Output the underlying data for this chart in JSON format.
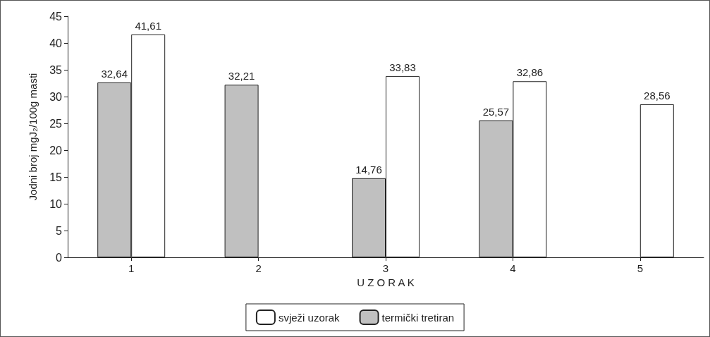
{
  "chart_data": {
    "type": "bar",
    "xlabel": "U Z O R A K",
    "ylabel": "Jodni broj mgJ₂/100g masti",
    "categories": [
      "1",
      "2",
      "3",
      "4",
      "5"
    ],
    "series": [
      {
        "name": "termički tretiran",
        "color": "#c0c0c0",
        "values": [
          32.64,
          32.21,
          14.76,
          25.57,
          null
        ],
        "value_labels": [
          "32,64",
          "32,21",
          "14,76",
          "25,57",
          null
        ]
      },
      {
        "name": "svježi uzorak",
        "color": "#ffffff",
        "values": [
          41.61,
          null,
          33.83,
          32.86,
          28.56
        ],
        "value_labels": [
          "41,61",
          null,
          "33,83",
          "32,86",
          "28,56"
        ]
      }
    ],
    "ylim": [
      0,
      45
    ],
    "yticks": [
      0,
      5,
      10,
      15,
      20,
      25,
      30,
      35,
      40,
      45
    ],
    "grid": false,
    "legend": "bottom"
  }
}
